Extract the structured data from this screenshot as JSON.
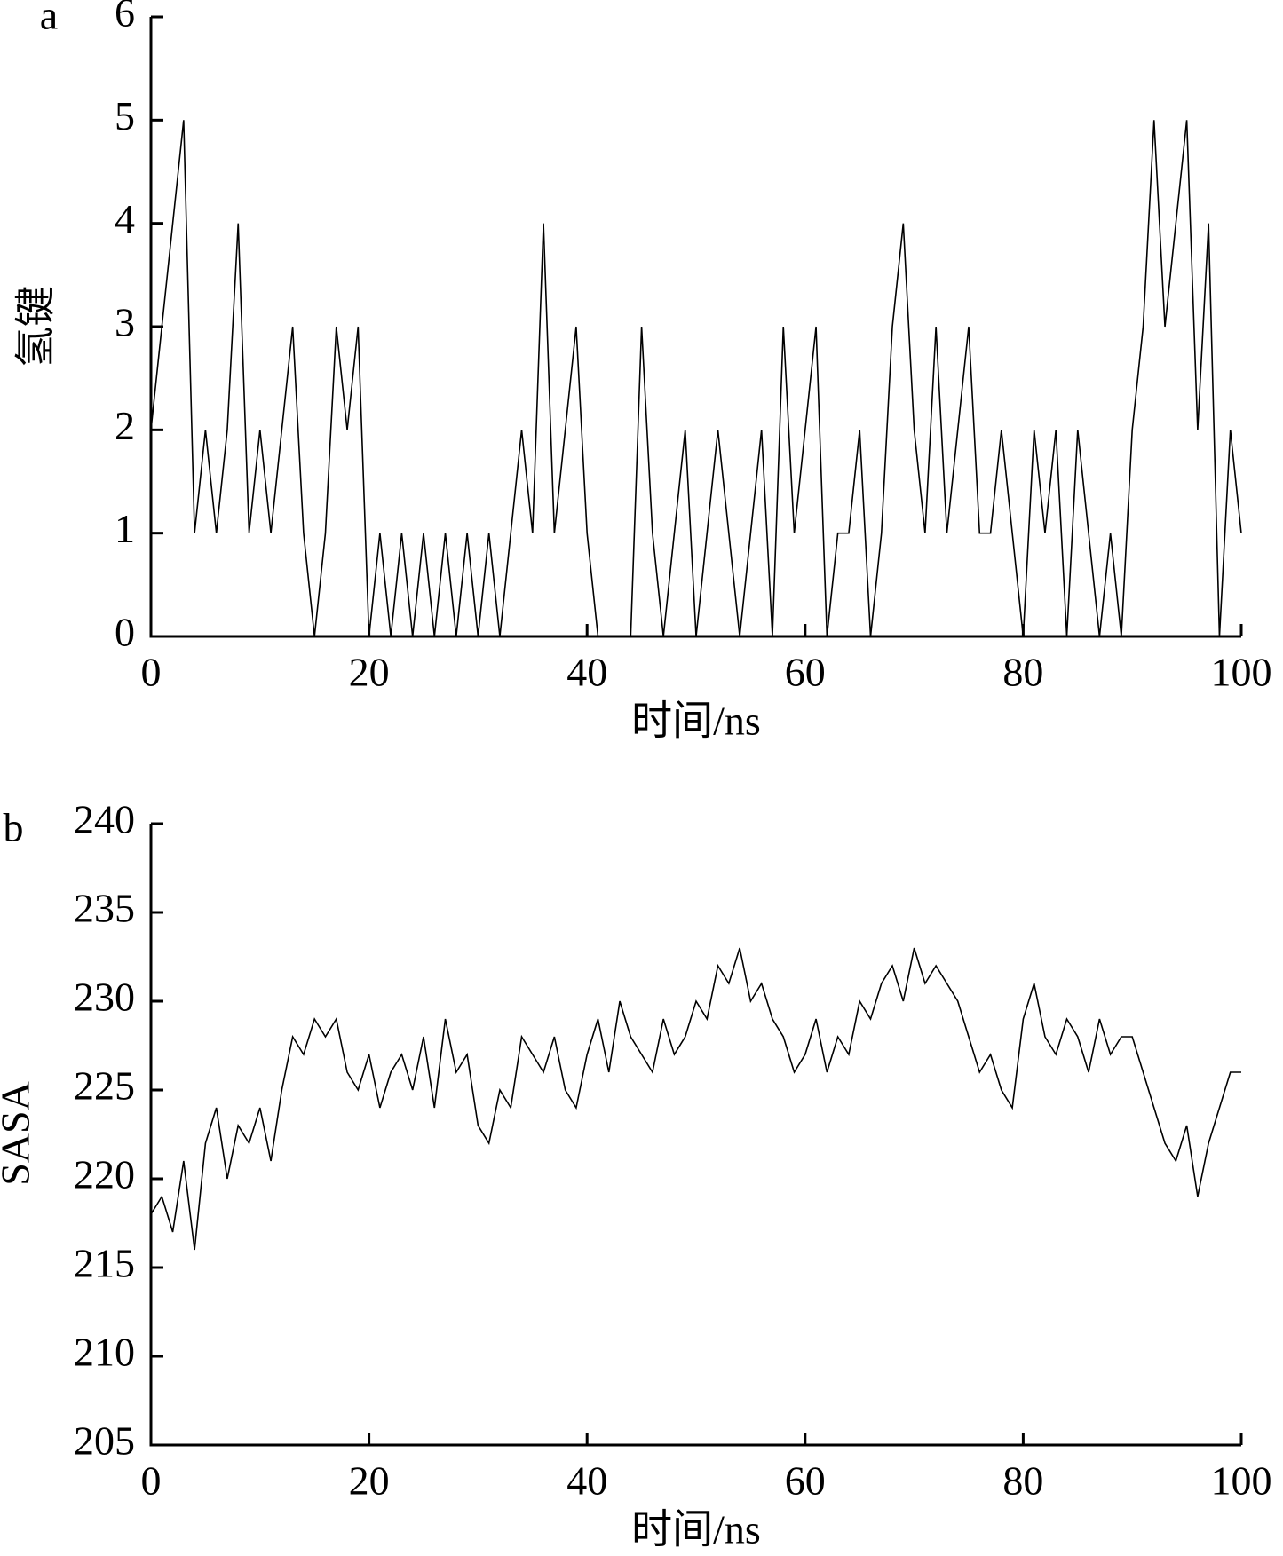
{
  "chart_data": [
    {
      "type": "line",
      "label": "a",
      "xlabel": "时间/ns",
      "ylabel": "氢键",
      "x": [
        0,
        1,
        2,
        3,
        4,
        5,
        6,
        7,
        8,
        9,
        10,
        11,
        12,
        13,
        14,
        15,
        16,
        17,
        18,
        19,
        20,
        21,
        22,
        23,
        24,
        25,
        26,
        27,
        28,
        29,
        30,
        31,
        32,
        33,
        34,
        35,
        36,
        37,
        38,
        39,
        40,
        41,
        42,
        43,
        44,
        45,
        46,
        47,
        48,
        49,
        50,
        51,
        52,
        53,
        54,
        55,
        56,
        57,
        58,
        59,
        60,
        61,
        62,
        63,
        64,
        65,
        66,
        67,
        68,
        69,
        70,
        71,
        72,
        73,
        74,
        75,
        76,
        77,
        78,
        79,
        80,
        81,
        82,
        83,
        84,
        85,
        86,
        87,
        88,
        89,
        90,
        91,
        92,
        93,
        94,
        95,
        96,
        97,
        98,
        99,
        100
      ],
      "series": [
        {
          "color": "#000000",
          "values": [
            2,
            3,
            4,
            5,
            1,
            2,
            1,
            2,
            4,
            1,
            2,
            1,
            2,
            3,
            1,
            0,
            1,
            3,
            2,
            3,
            0,
            1,
            0,
            1,
            0,
            1,
            0,
            1,
            0,
            1,
            0,
            1,
            0,
            1,
            2,
            1,
            4,
            1,
            2,
            3,
            1,
            0,
            0,
            0,
            0,
            3,
            1,
            0,
            1,
            2,
            0,
            1,
            2,
            1,
            0,
            1,
            2,
            0,
            3,
            1,
            2,
            3,
            0,
            1,
            1,
            2,
            0,
            1,
            3,
            4,
            2,
            1,
            3,
            1,
            2,
            3,
            1,
            1,
            2,
            1,
            0,
            2,
            1,
            2,
            0,
            2,
            1,
            0,
            1,
            0,
            2,
            3,
            5,
            3,
            4,
            5,
            2,
            4,
            0,
            2,
            1
          ]
        }
      ],
      "xlim": [
        0,
        100
      ],
      "xticks": [
        0,
        20,
        40,
        60,
        80,
        100
      ],
      "ylim": [
        0,
        6
      ],
      "yticks": [
        0,
        1,
        2,
        3,
        4,
        5,
        6
      ]
    },
    {
      "type": "line",
      "label": "b",
      "xlabel": "时间/ns",
      "ylabel": "SASA",
      "x": [
        0,
        1,
        2,
        3,
        4,
        5,
        6,
        7,
        8,
        9,
        10,
        11,
        12,
        13,
        14,
        15,
        16,
        17,
        18,
        19,
        20,
        21,
        22,
        23,
        24,
        25,
        26,
        27,
        28,
        29,
        30,
        31,
        32,
        33,
        34,
        35,
        36,
        37,
        38,
        39,
        40,
        41,
        42,
        43,
        44,
        45,
        46,
        47,
        48,
        49,
        50,
        51,
        52,
        53,
        54,
        55,
        56,
        57,
        58,
        59,
        60,
        61,
        62,
        63,
        64,
        65,
        66,
        67,
        68,
        69,
        70,
        71,
        72,
        73,
        74,
        75,
        76,
        77,
        78,
        79,
        80,
        81,
        82,
        83,
        84,
        85,
        86,
        87,
        88,
        89,
        90,
        91,
        92,
        93,
        94,
        95,
        96,
        97,
        98,
        99,
        100
      ],
      "series": [
        {
          "color": "#000000",
          "values": [
            218,
            219,
            217,
            221,
            216,
            222,
            224,
            220,
            223,
            222,
            224,
            221,
            225,
            228,
            227,
            229,
            228,
            229,
            226,
            225,
            227,
            224,
            226,
            227,
            225,
            228,
            224,
            229,
            226,
            227,
            223,
            222,
            225,
            224,
            228,
            227,
            226,
            228,
            225,
            224,
            227,
            229,
            226,
            230,
            228,
            227,
            226,
            229,
            227,
            228,
            230,
            229,
            232,
            231,
            233,
            230,
            231,
            229,
            228,
            226,
            227,
            229,
            226,
            228,
            227,
            230,
            229,
            231,
            232,
            230,
            233,
            231,
            232,
            231,
            230,
            228,
            226,
            227,
            225,
            224,
            229,
            231,
            228,
            227,
            229,
            228,
            226,
            229,
            227,
            228,
            228,
            226,
            224,
            222,
            221,
            223,
            219,
            222,
            224,
            226,
            226
          ]
        }
      ],
      "xlim": [
        0,
        100
      ],
      "xticks": [
        0,
        20,
        40,
        60,
        80,
        100
      ],
      "ylim": [
        205,
        240
      ],
      "yticks": [
        205,
        210,
        215,
        220,
        225,
        230,
        235,
        240
      ]
    }
  ]
}
